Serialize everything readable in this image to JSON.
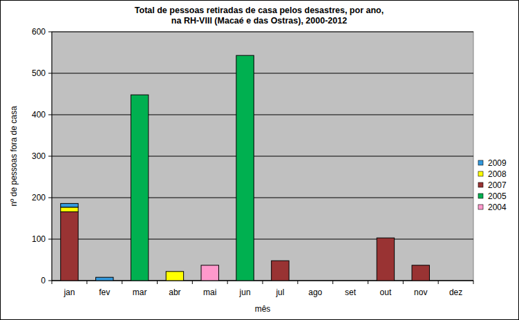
{
  "chart_data": {
    "type": "bar",
    "stacked": true,
    "title": "Total de pessoas  retiradas  de casa  pelos desastres,  por ano,\nna RH-VIII  (Macaé  e das Ostras),  2000-2012",
    "x_label": "mês",
    "y_label": "nº de pessoas fora de casa",
    "categories": [
      "jan",
      "fev",
      "mar",
      "abr",
      "mai",
      "jun",
      "jul",
      "ago",
      "set",
      "out",
      "nov",
      "dez"
    ],
    "series": [
      {
        "name": "2004",
        "color": "#ff99cc",
        "values": [
          0,
          0,
          0,
          0,
          37,
          0,
          0,
          0,
          0,
          0,
          0,
          0
        ]
      },
      {
        "name": "2005",
        "color": "#00b050",
        "values": [
          0,
          0,
          448,
          0,
          0,
          543,
          0,
          0,
          0,
          0,
          0,
          0
        ]
      },
      {
        "name": "2007",
        "color": "#993333",
        "values": [
          166,
          0,
          0,
          0,
          0,
          0,
          48,
          0,
          0,
          103,
          37,
          0
        ]
      },
      {
        "name": "2008",
        "color": "#ffff00",
        "values": [
          11,
          0,
          0,
          22,
          0,
          0,
          0,
          0,
          0,
          0,
          0,
          0
        ]
      },
      {
        "name": "2009",
        "color": "#3399dd",
        "values": [
          9,
          8,
          0,
          0,
          0,
          0,
          0,
          0,
          0,
          0,
          0,
          0
        ]
      }
    ],
    "ylim": [
      0,
      600
    ],
    "yticks": [
      0,
      100,
      200,
      300,
      400,
      500,
      600
    ],
    "grid": true,
    "legend": "right"
  }
}
